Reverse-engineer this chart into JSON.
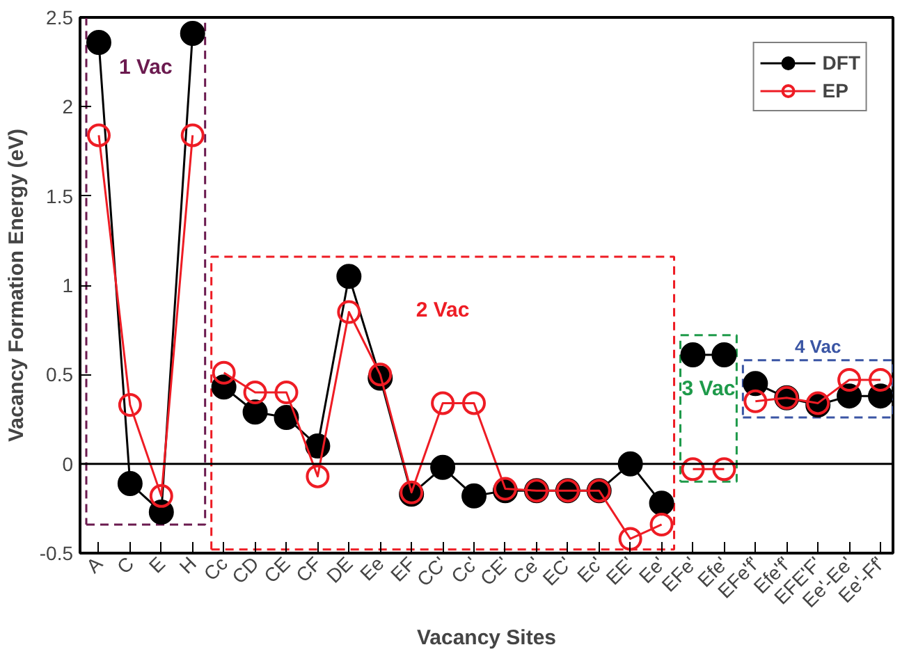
{
  "chart_data": {
    "type": "line",
    "xlabel": "Vacancy Sites",
    "ylabel": "Vacancy Formation Energy (eV)",
    "categories": [
      "A",
      "C",
      "E",
      "H",
      "Cc",
      "CD",
      "CE",
      "CF",
      "DE",
      "Ee",
      "EF",
      "CC'",
      "Cc'",
      "CE'",
      "Ce'",
      "EC'",
      "Ec'",
      "EE'",
      "Ee'",
      "EFe'",
      "Efe'",
      "EFe'f'",
      "Efe'f'",
      "EFE'F'",
      "Ee'-Ee'",
      "Ee'-Ff'"
    ],
    "series": [
      {
        "name": "DFT",
        "color": "#000000",
        "values": [
          2.36,
          -0.11,
          -0.27,
          2.41,
          null,
          null,
          null,
          null,
          null,
          null,
          null,
          null,
          null,
          null,
          null,
          null,
          null,
          null,
          null,
          null,
          null,
          null,
          null,
          null,
          null,
          null
        ]
      },
      {
        "color": "#000000",
        "values": [
          null,
          null,
          null,
          null,
          0.43,
          0.29,
          0.26,
          0.1,
          1.05,
          0.48,
          -0.17,
          -0.02,
          -0.18,
          -0.15,
          -0.15,
          -0.15,
          -0.15,
          0.0,
          -0.22,
          null,
          null,
          null,
          null,
          null,
          null,
          null
        ]
      },
      {
        "color": "#000000",
        "values": [
          null,
          null,
          null,
          null,
          null,
          null,
          null,
          null,
          null,
          null,
          null,
          null,
          null,
          null,
          null,
          null,
          null,
          null,
          null,
          0.61,
          0.61,
          null,
          null,
          null,
          null,
          null
        ]
      },
      {
        "color": "#000000",
        "values": [
          null,
          null,
          null,
          null,
          null,
          null,
          null,
          null,
          null,
          null,
          null,
          null,
          null,
          null,
          null,
          null,
          null,
          null,
          null,
          null,
          null,
          0.45,
          0.37,
          0.33,
          0.38,
          0.38
        ]
      },
      {
        "name": "EP",
        "color": "#ee1c24",
        "values": [
          1.84,
          0.33,
          -0.18,
          1.84,
          null,
          null,
          null,
          null,
          null,
          null,
          null,
          null,
          null,
          null,
          null,
          null,
          null,
          null,
          null,
          null,
          null,
          null,
          null,
          null,
          null,
          null
        ]
      },
      {
        "color": "#ee1c24",
        "values": [
          null,
          null,
          null,
          null,
          0.51,
          0.4,
          0.4,
          -0.07,
          0.85,
          0.5,
          -0.16,
          0.34,
          0.34,
          -0.14,
          -0.15,
          -0.15,
          -0.15,
          -0.42,
          -0.34,
          null,
          null,
          null,
          null,
          null,
          null,
          null
        ]
      },
      {
        "color": "#ee1c24",
        "values": [
          null,
          null,
          null,
          null,
          null,
          null,
          null,
          null,
          null,
          null,
          null,
          null,
          null,
          null,
          null,
          null,
          null,
          null,
          null,
          -0.03,
          -0.03,
          null,
          null,
          null,
          null,
          null
        ]
      },
      {
        "color": "#ee1c24",
        "values": [
          null,
          null,
          null,
          null,
          null,
          null,
          null,
          null,
          null,
          null,
          null,
          null,
          null,
          null,
          null,
          null,
          null,
          null,
          null,
          null,
          null,
          0.35,
          0.37,
          0.34,
          0.47,
          0.47
        ]
      }
    ],
    "ylim": [
      -0.5,
      2.5
    ],
    "yticks": [
      {
        "value": -0.5,
        "label": "-0.5"
      },
      0,
      0.5,
      1,
      1.5,
      2,
      2.5
    ],
    "ref_lines": [
      {
        "axis": "y",
        "value": 0,
        "color": "#000000",
        "line_style": "solid"
      }
    ],
    "annotations": [
      "1 Vac",
      "2 Vac",
      "3 Vac",
      "4 Vac"
    ],
    "marker": "circle",
    "grid": false,
    "legend": "top right"
  }
}
